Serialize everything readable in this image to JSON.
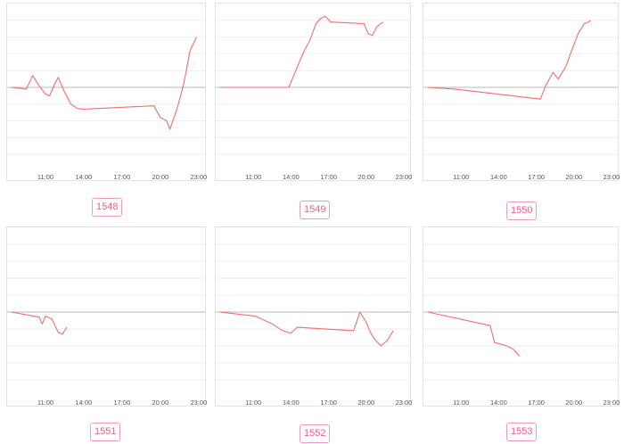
{
  "chart_data": [
    {
      "type": "line",
      "x": [
        "08:20",
        "09:30",
        "10:00",
        "10:30",
        "11:00",
        "11:20",
        "11:40",
        "12:00",
        "12:30",
        "13:00",
        "13:30",
        "14:00",
        "19:30",
        "20:00",
        "20:30",
        "20:45",
        "21:20",
        "21:50",
        "22:20",
        "22:50"
      ],
      "y": [
        0.0,
        -0.05,
        0.35,
        0.05,
        -0.2,
        -0.25,
        0.05,
        0.3,
        -0.15,
        -0.5,
        -0.63,
        -0.65,
        -0.55,
        -0.9,
        -1.0,
        -1.25,
        -0.6,
        0.1,
        1.1,
        1.5
      ],
      "xticks": [
        "11:00",
        "14:00",
        "17:00",
        "20:00",
        "23:00"
      ],
      "label": "1548",
      "color": "#f36c6c",
      "ylim": [
        -2.5,
        2.5
      ],
      "grid": true
    },
    {
      "type": "line",
      "x": [
        "08:20",
        "13:50",
        "14:30",
        "15:00",
        "15:30",
        "16:00",
        "16:20",
        "16:45",
        "17:10",
        "19:50",
        "20:10",
        "20:30",
        "20:50",
        "21:20"
      ],
      "y": [
        0.0,
        0.0,
        0.6,
        1.05,
        1.4,
        1.9,
        2.05,
        2.12,
        1.95,
        1.9,
        1.6,
        1.55,
        1.8,
        1.95
      ],
      "xticks": [
        "11:00",
        "14:00",
        "17:00",
        "20:00",
        "23:00"
      ],
      "label": "1549",
      "color": "#f36c6c",
      "ylim": [
        -2.5,
        2.5
      ],
      "grid": true
    },
    {
      "type": "line",
      "x": [
        "08:20",
        "10:30",
        "17:20",
        "17:45",
        "18:20",
        "18:45",
        "19:20",
        "19:50",
        "20:20",
        "20:50",
        "21:10",
        "21:20"
      ],
      "y": [
        0.0,
        -0.05,
        -0.35,
        0.05,
        0.45,
        0.25,
        0.6,
        1.1,
        1.6,
        1.9,
        1.95,
        2.0
      ],
      "xticks": [
        "11:00",
        "14:00",
        "17:00",
        "20:00",
        "23:00"
      ],
      "label": "1550",
      "color": "#f36c6c",
      "ylim": [
        -2.5,
        2.5
      ],
      "grid": true
    },
    {
      "type": "line",
      "x": [
        "08:20",
        "10:30",
        "10:45",
        "11:00",
        "11:30",
        "12:00",
        "12:20",
        "12:40"
      ],
      "y": [
        0.0,
        -0.15,
        -0.35,
        -0.12,
        -0.2,
        -0.6,
        -0.65,
        -0.45
      ],
      "xticks": [
        "11:00",
        "14:00",
        "17:00",
        "20:00",
        "23:00"
      ],
      "label": "1551",
      "color": "#f36c6c",
      "ylim": [
        -2.5,
        2.5
      ],
      "grid": true
    },
    {
      "type": "line",
      "x": [
        "08:20",
        "11:10",
        "12:30",
        "13:20",
        "14:00",
        "14:30",
        "19:00",
        "19:30",
        "20:00",
        "20:20",
        "20:40",
        "21:10",
        "21:40",
        "22:10"
      ],
      "y": [
        0.0,
        -0.12,
        -0.35,
        -0.55,
        -0.62,
        -0.45,
        -0.55,
        0.0,
        -0.3,
        -0.6,
        -0.8,
        -1.0,
        -0.85,
        -0.55
      ],
      "xticks": [
        "11:00",
        "14:00",
        "17:00",
        "20:00",
        "23:00"
      ],
      "label": "1552",
      "color": "#f36c6c",
      "ylim": [
        -2.5,
        2.5
      ],
      "grid": true
    },
    {
      "type": "line",
      "x": [
        "08:20",
        "13:20",
        "13:40",
        "14:40",
        "15:10",
        "15:40"
      ],
      "y": [
        0.0,
        -0.4,
        -0.9,
        -1.0,
        -1.1,
        -1.3
      ],
      "xticks": [
        "11:00",
        "14:00",
        "17:00",
        "20:00",
        "23:00"
      ],
      "label": "1553",
      "color": "#f36c6c",
      "ylim": [
        -2.5,
        2.5
      ],
      "grid": true
    }
  ]
}
